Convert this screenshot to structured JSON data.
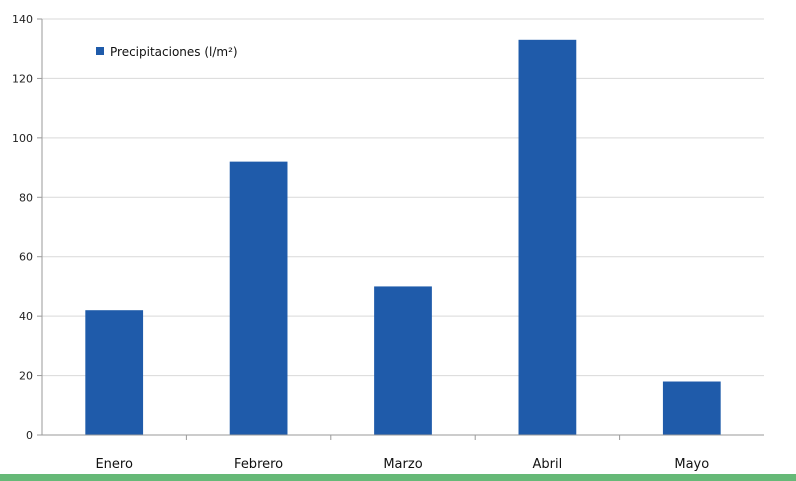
{
  "chart_data": {
    "type": "bar",
    "categories": [
      "Enero",
      "Febrero",
      "Marzo",
      "Abril",
      "Mayo"
    ],
    "series": [
      {
        "name": "Precipitaciones (l/m²)",
        "values": [
          42,
          92,
          50,
          133,
          18
        ]
      }
    ],
    "ylim": [
      0,
      140
    ],
    "yticks": [
      0,
      20,
      40,
      60,
      80,
      100,
      120,
      140
    ],
    "grid": true,
    "legend": "top-left",
    "colors": {
      "bar": "#1f5baa",
      "grid": "#d9d9d9",
      "axis": "#9a9a9a",
      "bottom_band": "#66b977"
    }
  }
}
